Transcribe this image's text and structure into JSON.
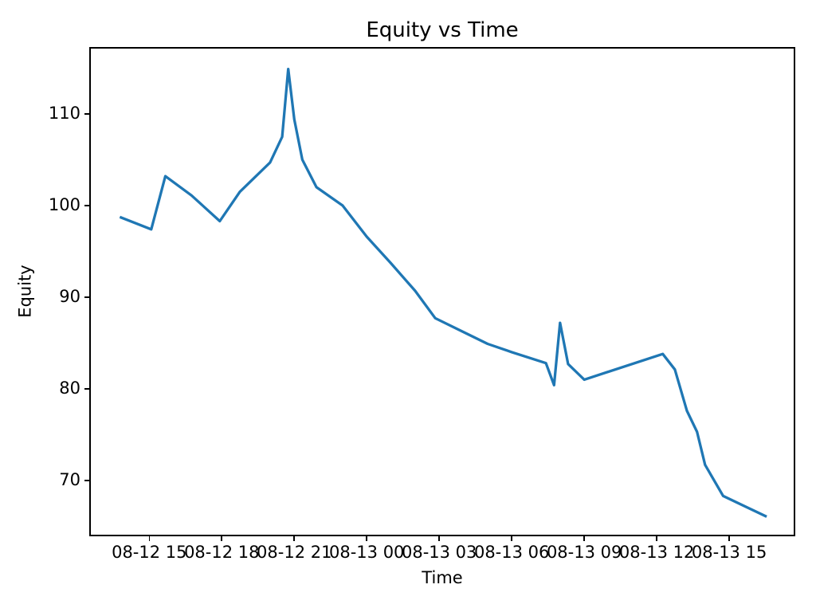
{
  "chart_data": {
    "type": "line",
    "title": "Equity vs Time",
    "xlabel": "Time",
    "ylabel": "Equity",
    "grid": false,
    "legend": null,
    "line_color": "#1f77b4",
    "line_width": 3.3,
    "xlim": [
      "08-12 12:31",
      "08-13 17:44"
    ],
    "ylim": [
      63.9,
      117.3
    ],
    "x_ticks": [
      {
        "label": "08-12 15",
        "time": "08-12 15:00"
      },
      {
        "label": "08-12 18",
        "time": "08-12 18:00"
      },
      {
        "label": "08-12 21",
        "time": "08-12 21:00"
      },
      {
        "label": "08-13 00",
        "time": "08-13 00:00"
      },
      {
        "label": "08-13 03",
        "time": "08-13 03:00"
      },
      {
        "label": "08-13 06",
        "time": "08-13 06:00"
      },
      {
        "label": "08-13 09",
        "time": "08-13 09:00"
      },
      {
        "label": "08-13 12",
        "time": "08-13 12:00"
      },
      {
        "label": "08-13 15",
        "time": "08-13 15:00"
      }
    ],
    "y_ticks": [
      70,
      80,
      90,
      100,
      110
    ],
    "series": [
      {
        "name": "Equity",
        "points": [
          [
            "08-12 13:50",
            98.7
          ],
          [
            "08-12 15:05",
            97.4
          ],
          [
            "08-12 15:40",
            103.2
          ],
          [
            "08-12 16:45",
            101.1
          ],
          [
            "08-12 17:55",
            98.3
          ],
          [
            "08-12 18:45",
            101.5
          ],
          [
            "08-12 20:00",
            104.7
          ],
          [
            "08-12 20:30",
            107.5
          ],
          [
            "08-12 20:45",
            114.9
          ],
          [
            "08-12 21:00",
            109.4
          ],
          [
            "08-12 21:20",
            105.0
          ],
          [
            "08-12 21:55",
            102.0
          ],
          [
            "08-12 23:00",
            100.0
          ],
          [
            "08-13 00:00",
            96.6
          ],
          [
            "08-13 01:00",
            93.7
          ],
          [
            "08-13 02:00",
            90.7
          ],
          [
            "08-13 02:50",
            87.7
          ],
          [
            "08-13 04:00",
            86.2
          ],
          [
            "08-13 05:00",
            84.9
          ],
          [
            "08-13 06:00",
            84.0
          ],
          [
            "08-13 07:25",
            82.8
          ],
          [
            "08-13 07:45",
            80.4
          ],
          [
            "08-13 08:00",
            87.2
          ],
          [
            "08-13 08:20",
            82.7
          ],
          [
            "08-13 09:00",
            81.0
          ],
          [
            "08-13 12:15",
            83.8
          ],
          [
            "08-13 12:45",
            82.1
          ],
          [
            "08-13 13:15",
            77.6
          ],
          [
            "08-13 13:40",
            75.3
          ],
          [
            "08-13 14:00",
            71.7
          ],
          [
            "08-13 14:45",
            68.3
          ],
          [
            "08-13 16:30",
            66.1
          ]
        ]
      }
    ]
  }
}
